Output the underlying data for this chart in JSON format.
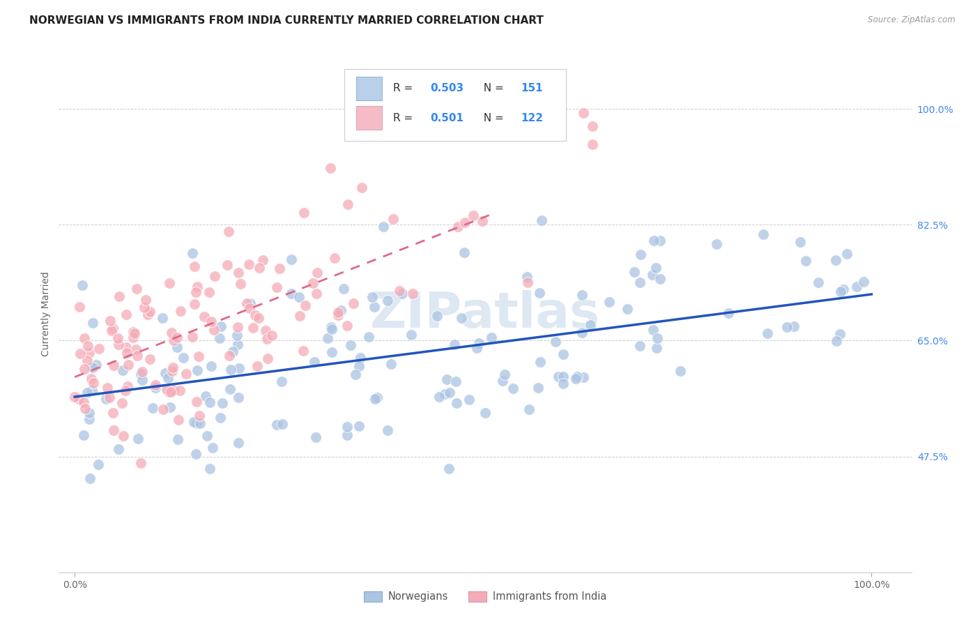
{
  "title": "NORWEGIAN VS IMMIGRANTS FROM INDIA CURRENTLY MARRIED CORRELATION CHART",
  "source": "Source: ZipAtlas.com",
  "ylabel": "Currently Married",
  "y_tick_vals": [
    0.475,
    0.65,
    0.825,
    1.0
  ],
  "y_tick_labels": [
    "47.5%",
    "65.0%",
    "82.5%",
    "100.0%"
  ],
  "x_tick_vals": [
    0.0,
    1.0
  ],
  "x_tick_labels": [
    "0.0%",
    "100.0%"
  ],
  "norwegian_color": "#aac4e2",
  "india_color": "#f5abb8",
  "norwegian_line_color": "#2255bb",
  "india_line_color": "#e06888",
  "norwegian_slope": 0.155,
  "norwegian_intercept": 0.565,
  "india_slope": 0.47,
  "india_intercept": 0.595,
  "xlim": [
    -0.02,
    1.05
  ],
  "ylim": [
    0.3,
    1.08
  ],
  "background_color": "#ffffff",
  "grid_color": "#cccccc",
  "title_fontsize": 11,
  "watermark_color": "#dde8f2",
  "legend_color_norwegian": "#b8d0ea",
  "legend_color_india": "#f5bcc8",
  "legend_r_norwegian": "0.503",
  "legend_n_norwegian": "151",
  "legend_r_india": "0.501",
  "legend_n_india": "122"
}
